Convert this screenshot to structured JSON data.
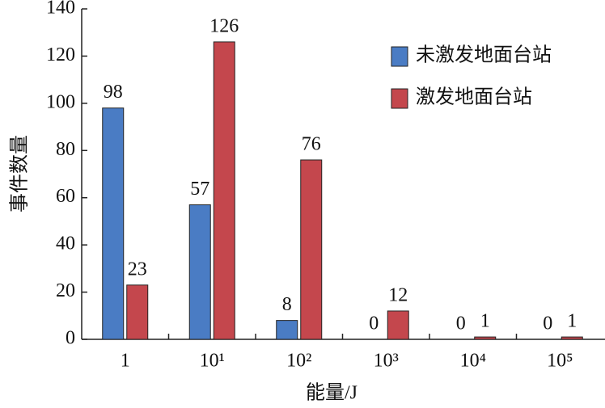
{
  "chart_data": {
    "type": "bar",
    "xlabel": "能量/J",
    "ylabel": "事件数量",
    "categories": [
      "1",
      "10¹",
      "10²",
      "10³",
      "10⁴",
      "10⁵"
    ],
    "series": [
      {
        "name": "未激发地面台站",
        "color": "#4a7cc4",
        "values": [
          98,
          57,
          8,
          0,
          0,
          0
        ]
      },
      {
        "name": "激发地面台站",
        "color": "#c4474d",
        "values": [
          23,
          126,
          76,
          12,
          1,
          1
        ]
      }
    ],
    "ylim": [
      0,
      140
    ],
    "yticks": [
      0,
      20,
      40,
      60,
      80,
      100,
      120,
      140
    ],
    "legend": "upper right"
  }
}
